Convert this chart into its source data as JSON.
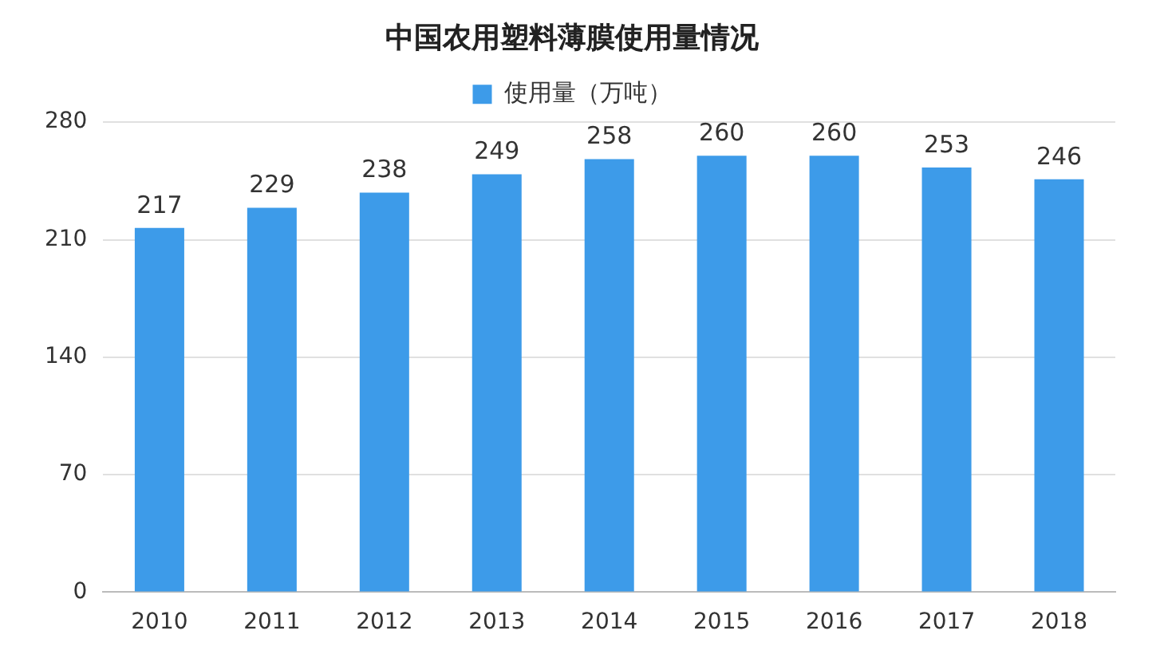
{
  "chart_data": {
    "type": "bar",
    "title": "中国农用塑料薄膜使用量情况",
    "categories": [
      "2010",
      "2011",
      "2012",
      "2013",
      "2014",
      "2015",
      "2016",
      "2017",
      "2018"
    ],
    "series": [
      {
        "name": "使用量（万吨）",
        "color": "#3d9be9",
        "values": [
          217,
          229,
          238,
          249,
          258,
          260,
          260,
          253,
          246
        ]
      }
    ],
    "ylim": [
      0,
      280
    ],
    "yticks": [
      0,
      70,
      140,
      210,
      280
    ],
    "grid": "y",
    "legend": "top",
    "data_labels": true
  }
}
